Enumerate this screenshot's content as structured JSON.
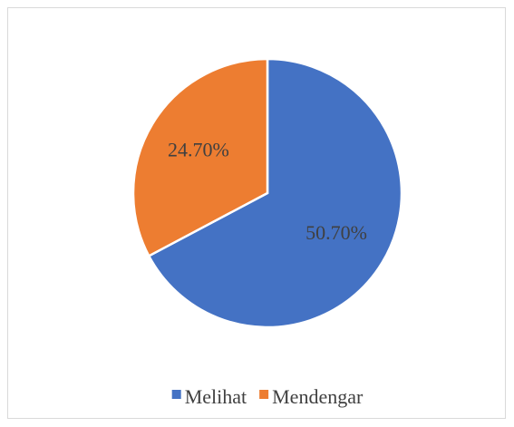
{
  "chart_data": {
    "type": "pie",
    "categories": [
      "Melihat",
      "Mendengar"
    ],
    "values": [
      50.7,
      24.7
    ],
    "value_labels": [
      "50.70%",
      "24.70%"
    ],
    "colors": [
      "#4472c4",
      "#ed7d31"
    ],
    "legend": "bottom"
  }
}
